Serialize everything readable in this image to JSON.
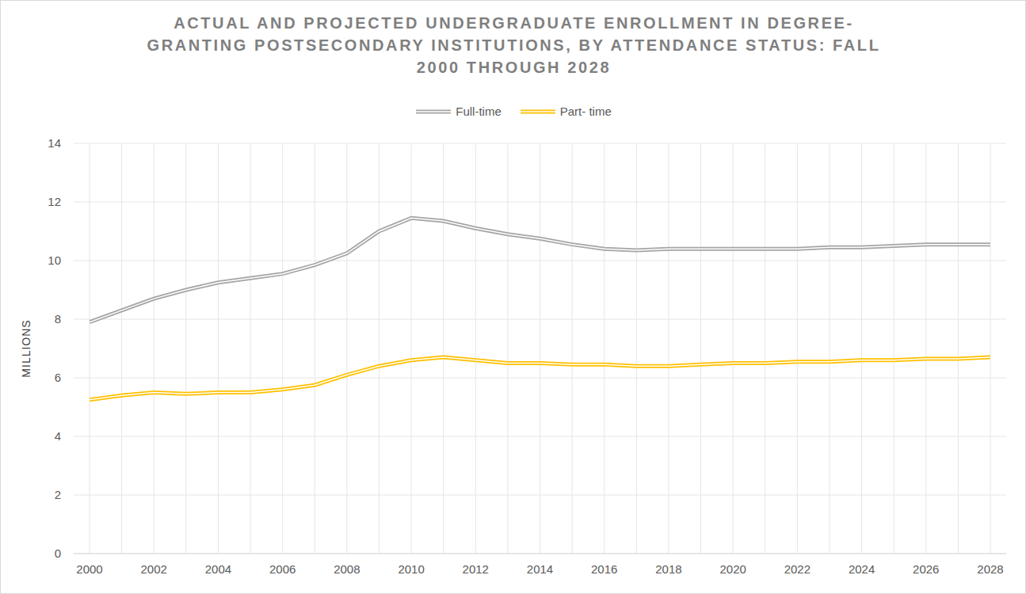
{
  "chart_data": {
    "type": "line",
    "title": "ACTUAL AND PROJECTED UNDERGRADUATE ENROLLMENT IN DEGREE-GRANTING POSTSECONDARY INSTITUTIONS, BY ATTENDANCE STATUS: FALL 2000 THROUGH 2028",
    "y_label": "MILLIONS",
    "x": [
      2000,
      2001,
      2002,
      2003,
      2004,
      2005,
      2006,
      2007,
      2008,
      2009,
      2010,
      2011,
      2012,
      2013,
      2014,
      2015,
      2016,
      2017,
      2018,
      2019,
      2020,
      2021,
      2022,
      2023,
      2024,
      2025,
      2026,
      2027,
      2028
    ],
    "series": [
      {
        "name": "Full-time",
        "color": "#a5a5a5",
        "line_style": "double",
        "values": [
          7.9,
          8.3,
          8.7,
          9.0,
          9.25,
          9.4,
          9.55,
          9.85,
          10.25,
          11.0,
          11.45,
          11.35,
          11.1,
          10.9,
          10.75,
          10.55,
          10.4,
          10.35,
          10.4,
          10.4,
          10.4,
          10.4,
          10.4,
          10.45,
          10.45,
          10.5,
          10.55,
          10.55,
          10.55
        ]
      },
      {
        "name": "Part- time",
        "color": "#ffc000",
        "line_style": "double",
        "values": [
          5.25,
          5.4,
          5.5,
          5.45,
          5.5,
          5.5,
          5.6,
          5.75,
          6.1,
          6.4,
          6.6,
          6.7,
          6.6,
          6.5,
          6.5,
          6.45,
          6.45,
          6.4,
          6.4,
          6.45,
          6.5,
          6.5,
          6.55,
          6.55,
          6.6,
          6.6,
          6.65,
          6.65,
          6.7
        ]
      }
    ],
    "xlim": [
      2000,
      2028
    ],
    "xticks": [
      2000,
      2002,
      2004,
      2006,
      2008,
      2010,
      2012,
      2014,
      2016,
      2018,
      2020,
      2022,
      2024,
      2026,
      2028
    ],
    "ylim": [
      0,
      14
    ],
    "yticks": [
      0,
      2,
      4,
      6,
      8,
      10,
      12,
      14
    ],
    "grid": true,
    "legend": "top"
  }
}
